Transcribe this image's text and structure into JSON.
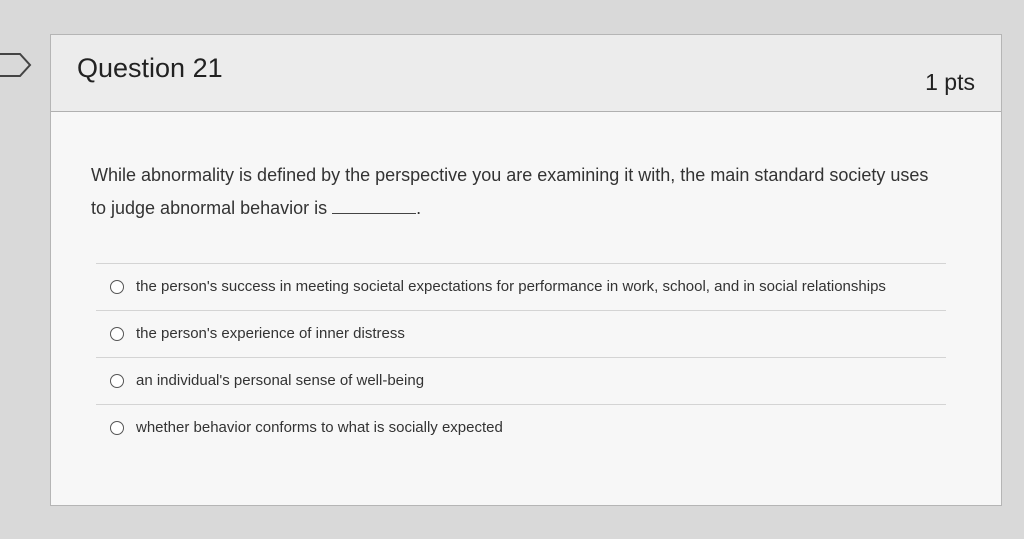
{
  "question": {
    "title": "Question 21",
    "points": "1 pts",
    "text": "While abnormality is defined by the perspective you are examining it with, the main standard society uses to judge abnormal behavior is",
    "text_end": "."
  },
  "answers": [
    {
      "label": "the person's success in meeting societal expectations for performance in work, school, and in social relationships",
      "selected": false
    },
    {
      "label": "the person's experience of inner distress",
      "selected": false
    },
    {
      "label": "an individual's personal sense of well-being",
      "selected": false
    },
    {
      "label": "whether behavior conforms to what is socially expected",
      "selected": false
    }
  ],
  "icons": {
    "flag": "bookmark-flag-icon",
    "radio": "radio-button-icon"
  }
}
